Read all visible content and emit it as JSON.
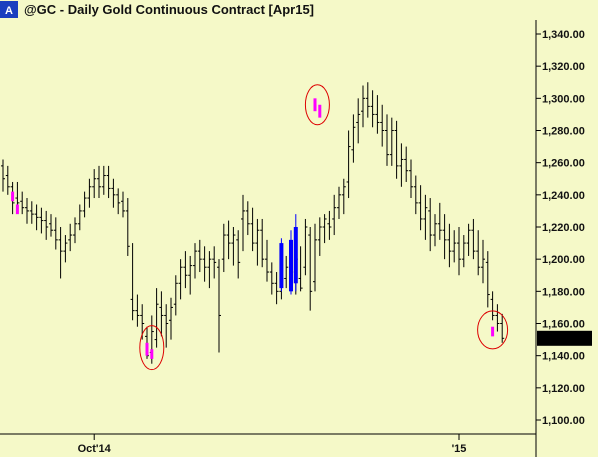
{
  "title_badge": "A",
  "chart_data": {
    "type": "ohlc",
    "title": "@GC - Daily  Gold Continuous Contract [Apr15]",
    "ylim": [
      1080,
      1360
    ],
    "y_ticks": [
      1100,
      1120,
      1140,
      1160,
      1180,
      1200,
      1220,
      1240,
      1260,
      1280,
      1300,
      1320,
      1340
    ],
    "y_tick_labels": [
      "1,100.00",
      "1,120.00",
      "1,140.00",
      "1,160.00",
      "1,180.00",
      "1,200.00",
      "1,220.00",
      "1,240.00",
      "1,260.00",
      "1,280.00",
      "1,300.00",
      "1,320.00",
      "1,340.00"
    ],
    "x_labels": [
      {
        "label": "Oct'14",
        "bar": 19
      },
      {
        "label": "'15",
        "bar": 95
      }
    ],
    "last_price": 1150.8,
    "last_price_label": "1,150.80",
    "grid": false,
    "colors": {
      "normal": "#000000",
      "highlight_pink": "#ff00ff",
      "highlight_blue": "#0000ff",
      "circle": "#dd0000",
      "last_price_bg": "#000000",
      "background": "#f5f9c8"
    },
    "bars": [
      [
        1258,
        1262,
        1242,
        1250
      ],
      [
        1252,
        1258,
        1240,
        1245
      ],
      [
        1245,
        1248,
        1228,
        1235
      ],
      [
        1238,
        1248,
        1230,
        1235
      ],
      [
        1236,
        1242,
        1228,
        1232
      ],
      [
        1232,
        1238,
        1222,
        1230
      ],
      [
        1230,
        1236,
        1222,
        1228
      ],
      [
        1228,
        1234,
        1218,
        1226
      ],
      [
        1226,
        1232,
        1216,
        1224
      ],
      [
        1224,
        1230,
        1212,
        1220
      ],
      [
        1222,
        1228,
        1214,
        1218
      ],
      [
        1218,
        1226,
        1206,
        1212
      ],
      [
        1212,
        1220,
        1188,
        1205
      ],
      [
        1205,
        1215,
        1198,
        1210
      ],
      [
        1212,
        1222,
        1205,
        1215
      ],
      [
        1215,
        1226,
        1210,
        1222
      ],
      [
        1222,
        1234,
        1218,
        1230
      ],
      [
        1230,
        1242,
        1226,
        1238
      ],
      [
        1238,
        1250,
        1232,
        1245
      ],
      [
        1245,
        1256,
        1238,
        1250
      ],
      [
        1250,
        1258,
        1238,
        1245
      ],
      [
        1245,
        1258,
        1240,
        1252
      ],
      [
        1252,
        1258,
        1238,
        1244
      ],
      [
        1244,
        1250,
        1232,
        1240
      ],
      [
        1240,
        1244,
        1228,
        1235
      ],
      [
        1236,
        1242,
        1226,
        1230
      ],
      [
        1230,
        1238,
        1202,
        1208
      ],
      [
        1175,
        1210,
        1162,
        1168
      ],
      [
        1168,
        1178,
        1158,
        1165
      ],
      [
        1165,
        1172,
        1150,
        1160
      ],
      [
        1152,
        1158,
        1138,
        1140
      ],
      [
        1142,
        1165,
        1135,
        1155
      ],
      [
        1150,
        1182,
        1145,
        1172
      ],
      [
        1170,
        1180,
        1152,
        1165
      ],
      [
        1165,
        1172,
        1145,
        1160
      ],
      [
        1162,
        1176,
        1150,
        1170
      ],
      [
        1172,
        1190,
        1165,
        1185
      ],
      [
        1185,
        1200,
        1175,
        1195
      ],
      [
        1195,
        1205,
        1182,
        1190
      ],
      [
        1190,
        1202,
        1178,
        1196
      ],
      [
        1196,
        1210,
        1188,
        1205
      ],
      [
        1205,
        1212,
        1192,
        1200
      ],
      [
        1200,
        1208,
        1186,
        1195
      ],
      [
        1195,
        1205,
        1182,
        1200
      ],
      [
        1200,
        1208,
        1188,
        1198
      ],
      [
        1195,
        1200,
        1142,
        1165
      ],
      [
        1200,
        1222,
        1192,
        1215
      ],
      [
        1215,
        1224,
        1200,
        1210
      ],
      [
        1210,
        1220,
        1196,
        1215
      ],
      [
        1212,
        1218,
        1188,
        1198
      ],
      [
        1225,
        1240,
        1205,
        1230
      ],
      [
        1230,
        1236,
        1215,
        1222
      ],
      [
        1222,
        1232,
        1205,
        1210
      ],
      [
        1210,
        1225,
        1196,
        1218
      ],
      [
        1218,
        1225,
        1195,
        1200
      ],
      [
        1200,
        1212,
        1186,
        1192
      ],
      [
        1192,
        1198,
        1178,
        1185
      ],
      [
        1185,
        1192,
        1172,
        1180
      ],
      [
        1180,
        1192,
        1175,
        1188
      ],
      [
        1188,
        1202,
        1182,
        1195
      ],
      [
        1195,
        1215,
        1180,
        1192
      ],
      [
        1192,
        1205,
        1178,
        1200
      ],
      [
        1188,
        1208,
        1180,
        1182
      ],
      [
        1195,
        1225,
        1190,
        1220
      ],
      [
        1215,
        1220,
        1168,
        1180
      ],
      [
        1186,
        1222,
        1180,
        1212
      ],
      [
        1212,
        1226,
        1202,
        1220
      ],
      [
        1220,
        1228,
        1210,
        1225
      ],
      [
        1222,
        1230,
        1212,
        1220
      ],
      [
        1225,
        1240,
        1215,
        1232
      ],
      [
        1232,
        1245,
        1225,
        1240
      ],
      [
        1240,
        1250,
        1228,
        1245
      ],
      [
        1248,
        1280,
        1238,
        1270
      ],
      [
        1268,
        1290,
        1260,
        1282
      ],
      [
        1285,
        1300,
        1272,
        1290
      ],
      [
        1292,
        1308,
        1282,
        1300
      ],
      [
        1300,
        1310,
        1288,
        1295
      ],
      [
        1295,
        1305,
        1282,
        1290
      ],
      [
        1290,
        1302,
        1278,
        1285
      ],
      [
        1285,
        1296,
        1270,
        1280
      ],
      [
        1280,
        1290,
        1258,
        1265
      ],
      [
        1265,
        1288,
        1258,
        1280
      ],
      [
        1280,
        1286,
        1250,
        1258
      ],
      [
        1258,
        1272,
        1245,
        1262
      ],
      [
        1262,
        1270,
        1248,
        1255
      ],
      [
        1255,
        1262,
        1238,
        1245
      ],
      [
        1245,
        1252,
        1228,
        1235
      ],
      [
        1235,
        1246,
        1218,
        1225
      ],
      [
        1225,
        1240,
        1212,
        1232
      ],
      [
        1230,
        1238,
        1205,
        1215
      ],
      [
        1215,
        1228,
        1208,
        1222
      ],
      [
        1222,
        1235,
        1212,
        1218
      ],
      [
        1218,
        1228,
        1200,
        1212
      ],
      [
        1212,
        1222,
        1195,
        1205
      ],
      [
        1205,
        1218,
        1198,
        1210
      ],
      [
        1210,
        1220,
        1190,
        1200
      ],
      [
        1200,
        1215,
        1195,
        1210
      ],
      [
        1210,
        1222,
        1202,
        1218
      ],
      [
        1218,
        1225,
        1200,
        1205
      ],
      [
        1205,
        1218,
        1190,
        1195
      ],
      [
        1195,
        1212,
        1185,
        1200
      ],
      [
        1198,
        1205,
        1170,
        1178
      ],
      [
        1175,
        1180,
        1162,
        1165
      ],
      [
        1165,
        1172,
        1155,
        1160
      ],
      [
        1160,
        1166,
        1148,
        1150.8
      ]
    ],
    "blue_bars": [
      [
        58,
        1182,
        1213,
        1180,
        1210
      ],
      [
        60,
        1180,
        1218,
        1178,
        1212
      ],
      [
        61,
        1185,
        1228,
        1180,
        1220
      ]
    ],
    "pink_markers": [
      [
        2,
        1236,
        1242
      ],
      [
        3,
        1228,
        1234
      ],
      [
        30,
        1140,
        1148
      ],
      [
        31,
        1138,
        1144
      ],
      [
        65,
        1292,
        1300
      ],
      [
        66,
        1288,
        1296
      ],
      [
        102,
        1152,
        1158
      ]
    ],
    "circles": [
      {
        "bar": 31,
        "price": 1145,
        "rx": 12,
        "ry": 22
      },
      {
        "bar": 65.5,
        "price": 1296,
        "rx": 12,
        "ry": 20
      },
      {
        "bar": 102,
        "price": 1156,
        "rx": 15,
        "ry": 19
      }
    ]
  }
}
